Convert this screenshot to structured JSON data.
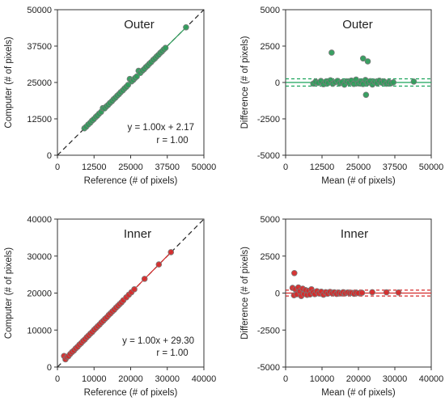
{
  "chart_data": [
    {
      "type": "scatter",
      "panel": "outer-agreement",
      "title": "Outer",
      "xlabel": "Reference  (# of pixels)",
      "ylabel": "Computer (# of pixels)",
      "xlim": [
        0,
        50000
      ],
      "ylim": [
        0,
        50000
      ],
      "xticks": [
        "0",
        "12500",
        "25000",
        "37500",
        "50000"
      ],
      "yticks": [
        "0",
        "12500",
        "25000",
        "37500",
        "50000"
      ],
      "xtick_values": [
        0,
        12500,
        25000,
        37500,
        50000
      ],
      "ytick_values": [
        0,
        12500,
        25000,
        37500,
        50000
      ],
      "identity_line": true,
      "fit": {
        "slope": 1.0,
        "intercept": 2.17
      },
      "annotations": [
        "y = 1.00x + 2.17",
        "r = 1.00"
      ],
      "point_color": "#2e9b5a",
      "x": [
        9200,
        9800,
        10500,
        11200,
        11800,
        12400,
        13100,
        13600,
        14200,
        14900,
        15500,
        16100,
        16700,
        17300,
        17900,
        18600,
        19200,
        19800,
        20400,
        21000,
        21600,
        22300,
        22900,
        23500,
        24100,
        24700,
        25300,
        25900,
        26500,
        27100,
        27700,
        28300,
        29000,
        29600,
        30200,
        30800,
        31400,
        32000,
        32700,
        33300,
        33900,
        34500,
        35100,
        35700,
        36300,
        36900,
        43900
      ],
      "y": [
        9250,
        9780,
        10550,
        11180,
        11850,
        12380,
        13150,
        13580,
        14250,
        14880,
        16200,
        16080,
        16750,
        17280,
        17950,
        18560,
        19250,
        19780,
        20450,
        20980,
        21650,
        22270,
        22950,
        23480,
        24150,
        26200,
        25350,
        25880,
        26550,
        27080,
        29000,
        28280,
        29050,
        29580,
        30250,
        30780,
        31450,
        31980,
        32750,
        33280,
        33950,
        34480,
        35150,
        35680,
        36350,
        36880,
        43950
      ]
    },
    {
      "type": "scatter",
      "panel": "outer-difference",
      "title": "Outer",
      "xlabel": "Mean (# of pixels)",
      "ylabel": "Difference (# of pixels)",
      "xlim": [
        0,
        50000
      ],
      "ylim": [
        -5000,
        5000
      ],
      "xticks": [
        "0",
        "12500",
        "25000",
        "37500",
        "50000"
      ],
      "yticks": [
        "-5000",
        "-2500",
        "0",
        "2500",
        "5000"
      ],
      "xtick_values": [
        0,
        12500,
        25000,
        37500,
        50000
      ],
      "ytick_values": [
        -5000,
        -2500,
        0,
        2500,
        5000
      ],
      "mean_line": 0,
      "limits": [
        -250,
        250
      ],
      "line_color": "#1aa35a",
      "point_color": "#2e9b5a",
      "x": [
        9500,
        10300,
        11200,
        12100,
        13000,
        13800,
        14600,
        15400,
        16200,
        17000,
        17800,
        18600,
        19400,
        20200,
        21000,
        21800,
        22600,
        23400,
        24200,
        25000,
        25800,
        26600,
        27400,
        28200,
        29000,
        29800,
        30600,
        31400,
        32200,
        33000,
        33800,
        34600,
        35400,
        36200,
        37000,
        15800,
        26600,
        27600,
        28200,
        44000
      ],
      "y": [
        -80,
        50,
        -30,
        100,
        -120,
        60,
        -40,
        150,
        -90,
        20,
        110,
        -60,
        30,
        -150,
        80,
        -20,
        130,
        -100,
        200,
        -70,
        40,
        -110,
        170,
        -30,
        90,
        -140,
        60,
        -50,
        120,
        -20,
        70,
        -90,
        30,
        -60,
        10,
        2050,
        1650,
        -850,
        1450,
        60
      ]
    },
    {
      "type": "scatter",
      "panel": "inner-agreement",
      "title": "Inner",
      "xlabel": "Reference  (# of pixels)",
      "ylabel": "Computer (# of pixels)",
      "xlim": [
        0,
        40000
      ],
      "ylim": [
        0,
        40000
      ],
      "xticks": [
        "0",
        "10000",
        "20000",
        "30000",
        "40000"
      ],
      "yticks": [
        "0",
        "10000",
        "20000",
        "30000",
        "40000"
      ],
      "xtick_values": [
        0,
        10000,
        20000,
        30000,
        40000
      ],
      "ytick_values": [
        0,
        10000,
        20000,
        30000,
        40000
      ],
      "identity_line": true,
      "fit": {
        "slope": 1.0,
        "intercept": 29.3
      },
      "annotations": [
        "y = 1.00x + 29.30",
        "r = 1.00"
      ],
      "point_color": "#d42a2a",
      "x": [
        1800,
        2200,
        2600,
        3000,
        3500,
        4000,
        4500,
        5000,
        5500,
        6000,
        6500,
        7000,
        7500,
        8000,
        8500,
        9000,
        9500,
        10000,
        10500,
        11000,
        11500,
        12000,
        12500,
        13000,
        13500,
        14000,
        14500,
        15000,
        15500,
        16000,
        16500,
        17000,
        17500,
        18000,
        18800,
        19500,
        20200,
        21000,
        23800,
        27700,
        31000
      ],
      "y": [
        3000,
        2100,
        2700,
        2950,
        3550,
        4050,
        4480,
        5050,
        5480,
        6050,
        6500,
        7030,
        7480,
        8050,
        8520,
        9030,
        9480,
        10040,
        10520,
        11030,
        11480,
        12040,
        12500,
        13030,
        13470,
        14050,
        14520,
        15030,
        15480,
        16040,
        16520,
        17020,
        17480,
        18050,
        18830,
        19540,
        20210,
        21020,
        23850,
        27740,
        31060
      ]
    },
    {
      "type": "scatter",
      "panel": "inner-difference",
      "title": "Inner",
      "xlabel": "Mean (# of pixels)",
      "ylabel": "Difference (# of pixels)",
      "xlim": [
        0,
        40000
      ],
      "ylim": [
        -5000,
        5000
      ],
      "xticks": [
        "0",
        "10000",
        "20000",
        "30000",
        "40000"
      ],
      "yticks": [
        "-5000",
        "-2500",
        "0",
        "2500",
        "5000"
      ],
      "xtick_values": [
        0,
        10000,
        20000,
        30000,
        40000
      ],
      "ytick_values": [
        -5000,
        -2500,
        0,
        2500,
        5000
      ],
      "mean_line": 0,
      "limits": [
        -200,
        200
      ],
      "line_color": "#d42a2a",
      "point_color": "#d42a2a",
      "x": [
        1900,
        2300,
        2700,
        3100,
        3500,
        3900,
        4300,
        4700,
        5100,
        5500,
        5900,
        6300,
        6700,
        7100,
        7500,
        8000,
        8600,
        9200,
        9800,
        10400,
        11000,
        11600,
        12200,
        12800,
        13400,
        14000,
        14600,
        15200,
        15800,
        16400,
        17000,
        17600,
        18200,
        18800,
        19400,
        20000,
        21000,
        23800,
        27700,
        31000,
        2400
      ],
      "y": [
        350,
        -150,
        250,
        -80,
        380,
        120,
        -200,
        300,
        -60,
        200,
        -120,
        150,
        -90,
        260,
        40,
        -70,
        130,
        -30,
        90,
        -110,
        60,
        -40,
        80,
        -20,
        50,
        -60,
        30,
        -30,
        60,
        -20,
        40,
        -10,
        20,
        -50,
        30,
        -10,
        20,
        60,
        50,
        40,
        1350
      ]
    }
  ]
}
